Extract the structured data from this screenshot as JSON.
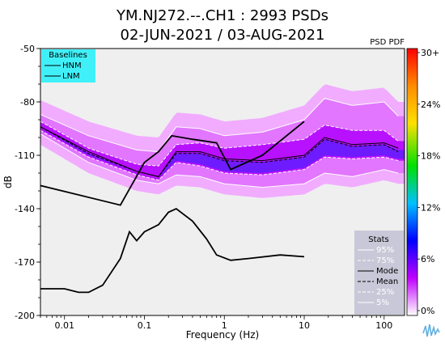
{
  "chart_data": {
    "type": "heatmap",
    "title_line1": "YM.NJ272.--.CH1 : 2993 PSDs",
    "title_line2": "02-JUN-2021 / 03-AUG-2021",
    "xlabel": "Frequency (Hz)",
    "ylabel": "dB",
    "x_scale": "log",
    "xlim": [
      0.005,
      180
    ],
    "ylim": [
      -200,
      -50
    ],
    "x_ticks": [
      {
        "value": 0.01,
        "label": "0.01"
      },
      {
        "value": 0.1,
        "label": "0.1"
      },
      {
        "value": 1,
        "label": "1"
      },
      {
        "value": 10,
        "label": "10"
      },
      {
        "value": 100,
        "label": "100"
      }
    ],
    "y_ticks": [
      {
        "value": -50,
        "label": "-50"
      },
      {
        "value": -80,
        "label": "-80"
      },
      {
        "value": -110,
        "label": "-110"
      },
      {
        "value": -140,
        "label": "-140"
      },
      {
        "value": -170,
        "label": "-170"
      },
      {
        "value": -200,
        "label": "-200"
      }
    ],
    "colorbar": {
      "title": "PSD PDF",
      "labels": [
        "30+",
        "24%",
        "18%",
        "12%",
        "6%",
        "0%"
      ],
      "colors": [
        "#ff0000",
        "#ff8c00",
        "#ffe000",
        "#00e000",
        "#00c0ff",
        "#0000ff",
        "#c000ff",
        "#ffffff"
      ]
    },
    "baselines_legend": {
      "title": "Baselines",
      "entries": [
        "HNM",
        "LNM"
      ],
      "bg_color": "#40f0f8"
    },
    "stats_legend": {
      "title": "Stats",
      "entries": [
        "95%",
        "75%",
        "Mode",
        "Mean",
        "25%",
        "5%"
      ],
      "bg_color": "#c8c8d8"
    },
    "series": [
      {
        "name": "HNM",
        "x": [
          0.005,
          0.05,
          0.1,
          0.15,
          0.22,
          0.4,
          0.8,
          1.2,
          3,
          10
        ],
        "y": [
          -127,
          -138,
          -114,
          -108,
          -99,
          -101,
          -103,
          -118,
          -110,
          -91
        ]
      },
      {
        "name": "LNM",
        "x": [
          0.005,
          0.01,
          0.015,
          0.02,
          0.03,
          0.05,
          0.065,
          0.08,
          0.1,
          0.15,
          0.2,
          0.25,
          0.4,
          0.6,
          0.8,
          1.2,
          2,
          5,
          10
        ],
        "y": [
          -185,
          -185,
          -187,
          -187,
          -183,
          -168,
          -153,
          -158,
          -153,
          -149,
          -142,
          -140,
          -147,
          -157,
          -166,
          -169,
          -168,
          -166,
          -167
        ]
      },
      {
        "name": "95%",
        "x": [
          0.005,
          0.02,
          0.08,
          0.15,
          0.25,
          0.5,
          1,
          3,
          10,
          18,
          40,
          100,
          150
        ],
        "y": [
          -87,
          -99,
          -107,
          -108,
          -94,
          -95,
          -99,
          -97,
          -90,
          -78,
          -82,
          -80,
          -88
        ]
      },
      {
        "name": "75%",
        "x": [
          0.005,
          0.02,
          0.08,
          0.15,
          0.25,
          0.5,
          1,
          3,
          10,
          18,
          40,
          100,
          150
        ],
        "y": [
          -91,
          -106,
          -115,
          -116,
          -104,
          -103,
          -106,
          -104,
          -101,
          -93,
          -96,
          -96,
          -102
        ]
      },
      {
        "name": "Mode",
        "x": [
          0.005,
          0.02,
          0.08,
          0.15,
          0.25,
          0.5,
          1,
          3,
          10,
          18,
          40,
          100,
          150
        ],
        "y": [
          -94,
          -108,
          -119,
          -122,
          -108,
          -108,
          -112,
          -113,
          -110,
          -100,
          -104,
          -103,
          -106
        ]
      },
      {
        "name": "Mean",
        "x": [
          0.005,
          0.02,
          0.08,
          0.15,
          0.25,
          0.5,
          1,
          3,
          10,
          18,
          40,
          100,
          150
        ],
        "y": [
          -94,
          -109,
          -119,
          -122,
          -109,
          -109,
          -113,
          -114,
          -111,
          -101,
          -105,
          -104,
          -108
        ]
      },
      {
        "name": "25%",
        "x": [
          0.005,
          0.02,
          0.08,
          0.15,
          0.25,
          0.5,
          1,
          3,
          10,
          18,
          40,
          100,
          150
        ],
        "y": [
          -96,
          -111,
          -121,
          -124,
          -114,
          -116,
          -120,
          -121,
          -118,
          -111,
          -112,
          -111,
          -113
        ]
      },
      {
        "name": "5%",
        "x": [
          0.005,
          0.02,
          0.08,
          0.15,
          0.25,
          0.5,
          1,
          3,
          10,
          18,
          40,
          100,
          150
        ],
        "y": [
          -98,
          -114,
          -124,
          -126,
          -121,
          -122,
          -126,
          -128,
          -126,
          -120,
          -122,
          -118,
          -120
        ]
      }
    ]
  }
}
